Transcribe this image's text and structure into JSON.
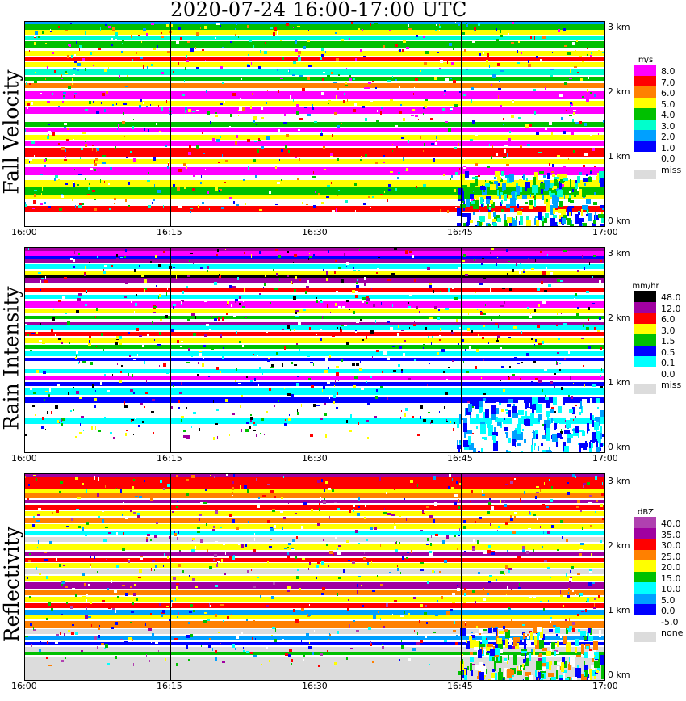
{
  "title": "2020-07-24   16:00-17:00 UTC",
  "chart_data": [
    {
      "type": "heatmap",
      "title": "Fall Velocity",
      "x_ticks": [
        "16:00",
        "16:15",
        "16:30",
        "16:45",
        "17:00"
      ],
      "y_ticks": [
        "0 km",
        "1 km",
        "2 km",
        "3 km"
      ],
      "unit": "m/s",
      "colorbar": [
        {
          "label": "8.0",
          "color": "#ff00ff"
        },
        {
          "label": "7.0",
          "color": "#ff0000"
        },
        {
          "label": "6.0",
          "color": "#ff8000"
        },
        {
          "label": "5.0",
          "color": "#ffff00"
        },
        {
          "label": "4.0",
          "color": "#00c000"
        },
        {
          "label": "3.0",
          "color": "#00ffcc"
        },
        {
          "label": "2.0",
          "color": "#00a0ff"
        },
        {
          "label": "1.0",
          "color": "#0000ff"
        },
        {
          "label": "0.0",
          "color": "#ffffff"
        }
      ],
      "missing_label": "miss"
    },
    {
      "type": "heatmap",
      "title": "Rain Intensity",
      "x_ticks": [
        "16:00",
        "16:15",
        "16:30",
        "16:45",
        "17:00"
      ],
      "y_ticks": [
        "0 km",
        "1 km",
        "2 km",
        "3 km"
      ],
      "unit": "mm/hr",
      "colorbar": [
        {
          "label": "48.0",
          "color": "#000000"
        },
        {
          "label": "12.0",
          "color": "#a000a0"
        },
        {
          "label": "6.0",
          "color": "#ff0000"
        },
        {
          "label": "3.0",
          "color": "#ffff00"
        },
        {
          "label": "1.5",
          "color": "#00c000"
        },
        {
          "label": "0.5",
          "color": "#0000ff"
        },
        {
          "label": "0.1",
          "color": "#00ffff"
        },
        {
          "label": "0.0",
          "color": "#ffffff"
        }
      ],
      "missing_label": "miss"
    },
    {
      "type": "heatmap",
      "title": "Reflectivity",
      "x_ticks": [
        "16:00",
        "16:15",
        "16:30",
        "16:45",
        "17:00"
      ],
      "y_ticks": [
        "0 km",
        "1 km",
        "2 km",
        "3 km"
      ],
      "unit": "dBZ",
      "colorbar": [
        {
          "label": "40.0",
          "color": "#b040b0"
        },
        {
          "label": "35.0",
          "color": "#a000a0"
        },
        {
          "label": "30.0",
          "color": "#ff0000"
        },
        {
          "label": "25.0",
          "color": "#ff8000"
        },
        {
          "label": "20.0",
          "color": "#ffff00"
        },
        {
          "label": "15.0",
          "color": "#00c000"
        },
        {
          "label": "10.0",
          "color": "#00ffff"
        },
        {
          "label": "5.0",
          "color": "#00a0ff"
        },
        {
          "label": "0.0",
          "color": "#0000ff"
        },
        {
          "label": "-5.0",
          "color": "#ffffff"
        }
      ],
      "missing_label": "none"
    }
  ]
}
